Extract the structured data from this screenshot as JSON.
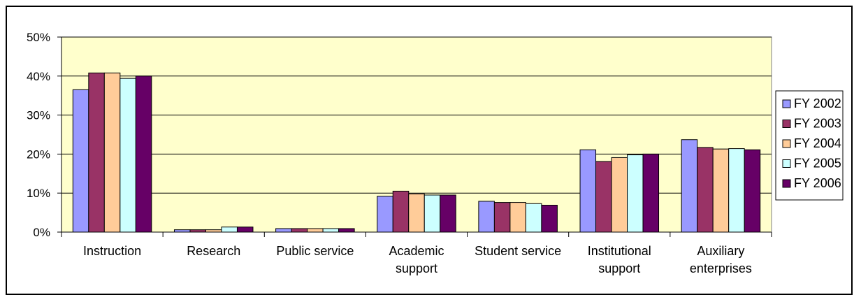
{
  "chart_data": {
    "type": "bar",
    "categories": [
      [
        "Instruction"
      ],
      [
        "Research"
      ],
      [
        "Public service"
      ],
      [
        "Academic",
        "support"
      ],
      [
        "Student service"
      ],
      [
        "Institutional",
        "support"
      ],
      [
        "Auxiliary",
        "enterprises"
      ]
    ],
    "series": [
      {
        "name": "FY 2002",
        "color": "#9999FF",
        "values": [
          36.5,
          0.6,
          0.9,
          9.2,
          7.9,
          21.1,
          23.7
        ]
      },
      {
        "name": "FY 2003",
        "color": "#993366",
        "values": [
          40.8,
          0.6,
          0.9,
          10.5,
          7.6,
          18.1,
          21.7
        ]
      },
      {
        "name": "FY 2004",
        "color": "#FFCC99",
        "values": [
          40.8,
          0.6,
          0.9,
          9.8,
          7.6,
          19.1,
          21.3
        ]
      },
      {
        "name": "FY 2005",
        "color": "#CCFFFF",
        "values": [
          39.4,
          1.3,
          0.9,
          9.5,
          7.3,
          19.8,
          21.4
        ]
      },
      {
        "name": "FY 2006",
        "color": "#660066",
        "values": [
          40.0,
          1.3,
          0.9,
          9.5,
          6.9,
          20.0,
          21.1
        ]
      }
    ],
    "y_ticks": [
      "0%",
      "10%",
      "20%",
      "30%",
      "40%",
      "50%"
    ],
    "ylim": [
      0,
      50
    ],
    "title": "",
    "xlabel": "",
    "ylabel": "",
    "grid": true,
    "legend_position": "right",
    "plot_background": "#FFFFCC",
    "gridline_color": "#000000"
  }
}
